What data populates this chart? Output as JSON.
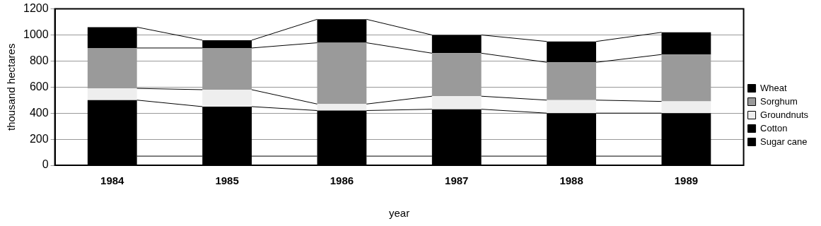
{
  "chart_data": {
    "type": "bar",
    "stacked": true,
    "xlabel": "year",
    "ylabel": "thousand hectares",
    "categories": [
      "1984",
      "1985",
      "1986",
      "1987",
      "1988",
      "1989"
    ],
    "ylim": [
      0,
      1200
    ],
    "yticks": [
      0,
      200,
      400,
      600,
      800,
      1000,
      1200
    ],
    "grid": "y",
    "legend": "right",
    "series": [
      {
        "name": "Sugar cane",
        "color": "#000000",
        "values": [
          70,
          70,
          70,
          70,
          70,
          70
        ]
      },
      {
        "name": "Cotton",
        "color": "#000000",
        "values": [
          430,
          380,
          350,
          360,
          330,
          330
        ]
      },
      {
        "name": "Groundnuts",
        "color": "#eeeeee",
        "values": [
          90,
          130,
          50,
          100,
          100,
          90
        ]
      },
      {
        "name": "Sorghum",
        "color": "#9a9a9a",
        "values": [
          310,
          320,
          470,
          330,
          290,
          360
        ]
      },
      {
        "name": "Wheat",
        "color": "#000000",
        "values": [
          160,
          60,
          180,
          140,
          160,
          170
        ]
      }
    ]
  }
}
